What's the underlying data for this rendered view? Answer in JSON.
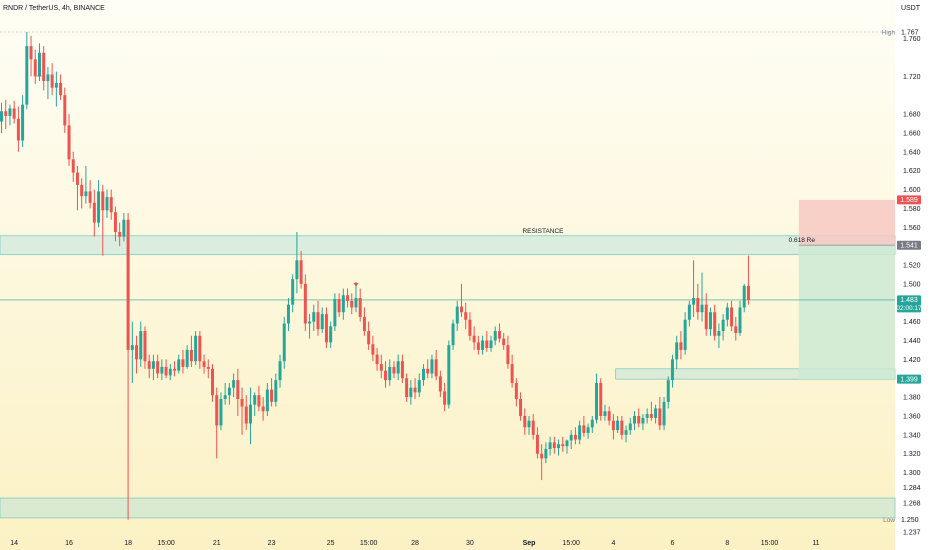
{
  "header": {
    "symbol": "RNDR / TetherUS, 4h, BINANCE",
    "currency": "USDT"
  },
  "colors": {
    "up": "#26a69a",
    "down": "#ef5350",
    "zone_fill": "#b2dfdb",
    "zone_stroke": "#80cbc4",
    "stop_fill": "#f8c6c2",
    "target_fill": "#cde9d3",
    "bg_top": "#fffef6",
    "bg_bottom": "#fbf1c4",
    "axis_text": "#131722",
    "guide": "#26a69a",
    "high_low_line": "#9aa7b8",
    "label_red": "#ef5350",
    "label_teal": "#26a69a",
    "label_gray": "#787b86"
  },
  "chart_data": {
    "type": "candlestick",
    "ylim": [
      1.237,
      1.767
    ],
    "y_ticks": [
      1.76,
      1.72,
      1.68,
      1.66,
      1.64,
      1.62,
      1.6,
      1.58,
      1.56,
      1.54,
      1.52,
      1.5,
      1.48,
      1.46,
      1.44,
      1.42,
      1.4,
      1.38,
      1.36,
      1.34,
      1.32,
      1.3,
      1.284,
      1.268,
      1.237
    ],
    "y_tick_labels": [
      "1.760",
      "1.720",
      "1.680",
      "1.660",
      "1.640",
      "1.620",
      "1.600",
      "1.580",
      "1.560",
      "1.540",
      "1.520",
      "1.500",
      "1.480",
      "1.460",
      "1.440",
      "1.420",
      "1.400",
      "1.380",
      "1.360",
      "1.340",
      "1.320",
      "1.300",
      "1.284",
      "1.268",
      "1.237"
    ],
    "x_labels": [
      {
        "label": "14",
        "bar": 3
      },
      {
        "label": "16",
        "bar": 16
      },
      {
        "label": "18",
        "bar": 30
      },
      {
        "label": "15:00",
        "bar": 39
      },
      {
        "label": "21",
        "bar": 51
      },
      {
        "label": "23",
        "bar": 64
      },
      {
        "label": "25",
        "bar": 78
      },
      {
        "label": "15:00",
        "bar": 87
      },
      {
        "label": "28",
        "bar": 98
      },
      {
        "label": "30",
        "bar": 111
      },
      {
        "label": "Sep",
        "bar": 125
      },
      {
        "label": "15:00",
        "bar": 135
      },
      {
        "label": "4",
        "bar": 145
      },
      {
        "label": "6",
        "bar": 159
      },
      {
        "label": "8",
        "bar": 172
      },
      {
        "label": "15:00",
        "bar": 182
      },
      {
        "label": "11",
        "bar": 193
      }
    ],
    "zones": [
      {
        "label": "RESISTANCE",
        "from": 1.531,
        "to": 1.551,
        "x_start_bar": 0
      },
      {
        "label": "",
        "from": 1.399,
        "to": 1.41,
        "x_start_bar": 146
      },
      {
        "label": "",
        "from": 1.252,
        "to": 1.273,
        "x_start_bar": 0
      }
    ],
    "position": {
      "entry": 1.541,
      "stop": 1.589,
      "target": 1.399,
      "start_bar": 188,
      "entry_label": "0.618 Re"
    },
    "markers": [
      {
        "type": "up",
        "bar": 9,
        "value": 1.722
      },
      {
        "type": "down",
        "bar": 84,
        "value": 1.499
      }
    ],
    "price_labels": [
      {
        "text": "1.767",
        "tag": "High",
        "value": 1.767,
        "style": "high"
      },
      {
        "text": "1.589",
        "value": 1.589,
        "style": "red"
      },
      {
        "text": "1.541",
        "value": 1.541,
        "style": "gray"
      },
      {
        "text": "1.483",
        "subtext": "02:00:17",
        "value": 1.483,
        "style": "teal"
      },
      {
        "text": "1.399",
        "value": 1.399,
        "style": "teal"
      },
      {
        "text": "1.250",
        "tag": "Low",
        "value": 1.25,
        "style": "low"
      }
    ],
    "last_price": 1.483,
    "ohlc": [
      [
        1.672,
        1.692,
        1.66,
        1.683
      ],
      [
        1.683,
        1.695,
        1.664,
        1.678
      ],
      [
        1.678,
        1.69,
        1.668,
        1.686
      ],
      [
        1.686,
        1.694,
        1.67,
        1.675
      ],
      [
        1.675,
        1.688,
        1.64,
        1.652
      ],
      [
        1.652,
        1.7,
        1.645,
        1.69
      ],
      [
        1.69,
        1.767,
        1.685,
        1.752
      ],
      [
        1.752,
        1.763,
        1.72,
        1.738
      ],
      [
        1.738,
        1.748,
        1.712,
        1.72
      ],
      [
        1.72,
        1.755,
        1.715,
        1.745
      ],
      [
        1.745,
        1.752,
        1.705,
        1.715
      ],
      [
        1.715,
        1.73,
        1.696,
        1.722
      ],
      [
        1.722,
        1.734,
        1.7,
        1.708
      ],
      [
        1.708,
        1.725,
        1.688,
        1.713
      ],
      [
        1.713,
        1.722,
        1.695,
        1.7
      ],
      [
        1.7,
        1.708,
        1.66,
        1.668
      ],
      [
        1.668,
        1.68,
        1.625,
        1.632
      ],
      [
        1.632,
        1.64,
        1.608,
        1.618
      ],
      [
        1.618,
        1.625,
        1.578,
        1.605
      ],
      [
        1.605,
        1.612,
        1.58,
        1.593
      ],
      [
        1.593,
        1.625,
        1.585,
        1.598
      ],
      [
        1.598,
        1.61,
        1.58,
        1.586
      ],
      [
        1.586,
        1.6,
        1.55,
        1.565
      ],
      [
        1.565,
        1.61,
        1.56,
        1.598
      ],
      [
        1.598,
        1.605,
        1.53,
        1.578
      ],
      [
        1.578,
        1.6,
        1.57,
        1.592
      ],
      [
        1.592,
        1.6,
        1.568,
        1.576
      ],
      [
        1.576,
        1.582,
        1.545,
        1.555
      ],
      [
        1.555,
        1.565,
        1.54,
        1.55
      ],
      [
        1.55,
        1.575,
        1.545,
        1.568
      ],
      [
        1.568,
        1.575,
        1.25,
        1.43
      ],
      [
        1.43,
        1.46,
        1.395,
        1.435
      ],
      [
        1.435,
        1.445,
        1.405,
        1.42
      ],
      [
        1.42,
        1.46,
        1.412,
        1.45
      ],
      [
        1.45,
        1.455,
        1.41,
        1.418
      ],
      [
        1.418,
        1.425,
        1.4,
        1.41
      ],
      [
        1.41,
        1.425,
        1.398,
        1.418
      ],
      [
        1.418,
        1.425,
        1.4,
        1.405
      ],
      [
        1.405,
        1.42,
        1.398,
        1.412
      ],
      [
        1.412,
        1.42,
        1.4,
        1.403
      ],
      [
        1.403,
        1.415,
        1.398,
        1.41
      ],
      [
        1.41,
        1.418,
        1.402,
        1.408
      ],
      [
        1.408,
        1.425,
        1.405,
        1.42
      ],
      [
        1.42,
        1.43,
        1.405,
        1.412
      ],
      [
        1.412,
        1.435,
        1.41,
        1.43
      ],
      [
        1.43,
        1.445,
        1.412,
        1.418
      ],
      [
        1.418,
        1.45,
        1.414,
        1.445
      ],
      [
        1.445,
        1.45,
        1.41,
        1.418
      ],
      [
        1.418,
        1.425,
        1.405,
        1.412
      ],
      [
        1.412,
        1.42,
        1.4,
        1.41
      ],
      [
        1.41,
        1.415,
        1.375,
        1.382
      ],
      [
        1.382,
        1.39,
        1.315,
        1.35
      ],
      [
        1.35,
        1.385,
        1.345,
        1.378
      ],
      [
        1.378,
        1.395,
        1.372,
        1.382
      ],
      [
        1.382,
        1.395,
        1.372,
        1.39
      ],
      [
        1.39,
        1.405,
        1.38,
        1.398
      ],
      [
        1.398,
        1.41,
        1.36,
        1.378
      ],
      [
        1.378,
        1.39,
        1.34,
        1.37
      ],
      [
        1.37,
        1.382,
        1.345,
        1.352
      ],
      [
        1.352,
        1.39,
        1.33,
        1.372
      ],
      [
        1.372,
        1.385,
        1.36,
        1.382
      ],
      [
        1.382,
        1.392,
        1.365,
        1.37
      ],
      [
        1.37,
        1.38,
        1.355,
        1.365
      ],
      [
        1.365,
        1.395,
        1.36,
        1.388
      ],
      [
        1.388,
        1.4,
        1.37,
        1.375
      ],
      [
        1.375,
        1.405,
        1.37,
        1.398
      ],
      [
        1.398,
        1.425,
        1.39,
        1.418
      ],
      [
        1.418,
        1.465,
        1.41,
        1.458
      ],
      [
        1.458,
        1.485,
        1.45,
        1.478
      ],
      [
        1.478,
        1.51,
        1.47,
        1.505
      ],
      [
        1.505,
        1.555,
        1.49,
        1.525
      ],
      [
        1.525,
        1.535,
        1.495,
        1.5
      ],
      [
        1.5,
        1.51,
        1.45,
        1.458
      ],
      [
        1.458,
        1.468,
        1.442,
        1.46
      ],
      [
        1.46,
        1.478,
        1.45,
        1.47
      ],
      [
        1.47,
        1.482,
        1.445,
        1.452
      ],
      [
        1.452,
        1.475,
        1.448,
        1.468
      ],
      [
        1.468,
        1.475,
        1.432,
        1.438
      ],
      [
        1.438,
        1.46,
        1.432,
        1.455
      ],
      [
        1.455,
        1.49,
        1.45,
        1.484
      ],
      [
        1.484,
        1.49,
        1.465,
        1.47
      ],
      [
        1.47,
        1.495,
        1.462,
        1.488
      ],
      [
        1.488,
        1.495,
        1.475,
        1.482
      ],
      [
        1.482,
        1.49,
        1.468,
        1.475
      ],
      [
        1.475,
        1.502,
        1.47,
        1.485
      ],
      [
        1.485,
        1.495,
        1.46,
        1.465
      ],
      [
        1.465,
        1.475,
        1.445,
        1.45
      ],
      [
        1.45,
        1.46,
        1.43,
        1.436
      ],
      [
        1.436,
        1.445,
        1.418,
        1.425
      ],
      [
        1.425,
        1.432,
        1.408,
        1.415
      ],
      [
        1.415,
        1.425,
        1.4,
        1.408
      ],
      [
        1.408,
        1.418,
        1.39,
        1.398
      ],
      [
        1.398,
        1.42,
        1.392,
        1.412
      ],
      [
        1.412,
        1.418,
        1.4,
        1.405
      ],
      [
        1.405,
        1.425,
        1.398,
        1.418
      ],
      [
        1.418,
        1.425,
        1.395,
        1.4
      ],
      [
        1.4,
        1.405,
        1.375,
        1.38
      ],
      [
        1.38,
        1.398,
        1.372,
        1.39
      ],
      [
        1.39,
        1.4,
        1.378,
        1.385
      ],
      [
        1.385,
        1.405,
        1.38,
        1.398
      ],
      [
        1.398,
        1.415,
        1.392,
        1.41
      ],
      [
        1.41,
        1.42,
        1.4,
        1.405
      ],
      [
        1.405,
        1.425,
        1.4,
        1.42
      ],
      [
        1.42,
        1.43,
        1.398,
        1.402
      ],
      [
        1.402,
        1.408,
        1.38,
        1.386
      ],
      [
        1.386,
        1.395,
        1.365,
        1.372
      ],
      [
        1.372,
        1.44,
        1.368,
        1.435
      ],
      [
        1.435,
        1.462,
        1.43,
        1.458
      ],
      [
        1.458,
        1.482,
        1.45,
        1.476
      ],
      [
        1.476,
        1.5,
        1.465,
        1.47
      ],
      [
        1.47,
        1.48,
        1.452,
        1.462
      ],
      [
        1.462,
        1.47,
        1.44,
        1.445
      ],
      [
        1.445,
        1.455,
        1.43,
        1.438
      ],
      [
        1.438,
        1.445,
        1.425,
        1.43
      ],
      [
        1.43,
        1.445,
        1.425,
        1.44
      ],
      [
        1.44,
        1.45,
        1.428,
        1.432
      ],
      [
        1.432,
        1.445,
        1.428,
        1.44
      ],
      [
        1.44,
        1.455,
        1.435,
        1.45
      ],
      [
        1.45,
        1.458,
        1.438,
        1.442
      ],
      [
        1.442,
        1.448,
        1.43,
        1.435
      ],
      [
        1.435,
        1.445,
        1.41,
        1.415
      ],
      [
        1.415,
        1.425,
        1.39,
        1.395
      ],
      [
        1.395,
        1.4,
        1.37,
        1.378
      ],
      [
        1.378,
        1.385,
        1.355,
        1.36
      ],
      [
        1.36,
        1.368,
        1.34,
        1.348
      ],
      [
        1.348,
        1.36,
        1.34,
        1.355
      ],
      [
        1.355,
        1.362,
        1.335,
        1.34
      ],
      [
        1.34,
        1.348,
        1.315,
        1.32
      ],
      [
        1.32,
        1.33,
        1.292,
        1.315
      ],
      [
        1.315,
        1.332,
        1.31,
        1.325
      ],
      [
        1.325,
        1.338,
        1.318,
        1.332
      ],
      [
        1.332,
        1.338,
        1.32,
        1.326
      ],
      [
        1.326,
        1.335,
        1.318,
        1.33
      ],
      [
        1.33,
        1.338,
        1.322,
        1.328
      ],
      [
        1.328,
        1.335,
        1.32,
        1.334
      ],
      [
        1.334,
        1.345,
        1.325,
        1.34
      ],
      [
        1.34,
        1.348,
        1.33,
        1.335
      ],
      [
        1.335,
        1.355,
        1.33,
        1.35
      ],
      [
        1.35,
        1.36,
        1.338,
        1.342
      ],
      [
        1.342,
        1.352,
        1.336,
        1.348
      ],
      [
        1.348,
        1.36,
        1.342,
        1.356
      ],
      [
        1.356,
        1.405,
        1.352,
        1.395
      ],
      [
        1.395,
        1.4,
        1.355,
        1.36
      ],
      [
        1.36,
        1.372,
        1.355,
        1.365
      ],
      [
        1.365,
        1.37,
        1.35,
        1.355
      ],
      [
        1.355,
        1.362,
        1.335,
        1.345
      ],
      [
        1.345,
        1.36,
        1.342,
        1.355
      ],
      [
        1.355,
        1.36,
        1.335,
        1.34
      ],
      [
        1.34,
        1.35,
        1.332,
        1.345
      ],
      [
        1.345,
        1.358,
        1.34,
        1.352
      ],
      [
        1.352,
        1.365,
        1.345,
        1.36
      ],
      [
        1.36,
        1.368,
        1.348,
        1.352
      ],
      [
        1.352,
        1.362,
        1.345,
        1.358
      ],
      [
        1.358,
        1.368,
        1.352,
        1.362
      ],
      [
        1.362,
        1.375,
        1.355,
        1.358
      ],
      [
        1.358,
        1.372,
        1.352,
        1.368
      ],
      [
        1.368,
        1.38,
        1.345,
        1.35
      ],
      [
        1.35,
        1.38,
        1.345,
        1.375
      ],
      [
        1.375,
        1.402,
        1.368,
        1.398
      ],
      [
        1.398,
        1.425,
        1.39,
        1.42
      ],
      [
        1.42,
        1.445,
        1.41,
        1.438
      ],
      [
        1.438,
        1.45,
        1.42,
        1.43
      ],
      [
        1.43,
        1.47,
        1.425,
        1.462
      ],
      [
        1.462,
        1.482,
        1.455,
        1.478
      ],
      [
        1.478,
        1.525,
        1.465,
        1.485
      ],
      [
        1.485,
        1.5,
        1.462,
        1.47
      ],
      [
        1.47,
        1.512,
        1.46,
        1.478
      ],
      [
        1.478,
        1.49,
        1.445,
        1.452
      ],
      [
        1.452,
        1.475,
        1.445,
        1.47
      ],
      [
        1.47,
        1.478,
        1.44,
        1.445
      ],
      [
        1.445,
        1.458,
        1.432,
        1.45
      ],
      [
        1.45,
        1.468,
        1.44,
        1.462
      ],
      [
        1.462,
        1.48,
        1.455,
        1.475
      ],
      [
        1.475,
        1.482,
        1.45,
        1.455
      ],
      [
        1.455,
        1.465,
        1.44,
        1.448
      ],
      [
        1.448,
        1.482,
        1.445,
        1.475
      ],
      [
        1.475,
        1.5,
        1.47,
        1.498
      ],
      [
        1.498,
        1.53,
        1.478,
        1.483
      ]
    ]
  }
}
